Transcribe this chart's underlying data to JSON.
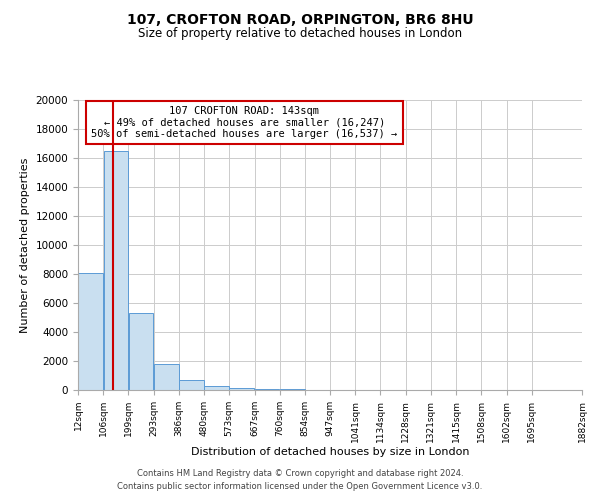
{
  "title": "107, CROFTON ROAD, ORPINGTON, BR6 8HU",
  "subtitle": "Size of property relative to detached houses in London",
  "xlabel": "Distribution of detached houses by size in London",
  "ylabel": "Number of detached properties",
  "bar_values": [
    8100,
    16500,
    5300,
    1800,
    700,
    300,
    150,
    100,
    50,
    0,
    0,
    0,
    0,
    0,
    0,
    0,
    0,
    0,
    0
  ],
  "bin_edges": [
    12,
    106,
    199,
    293,
    386,
    480,
    573,
    667,
    760,
    854,
    947,
    1041,
    1134,
    1228,
    1321,
    1415,
    1508,
    1602,
    1695,
    1882
  ],
  "tick_labels": [
    "12sqm",
    "106sqm",
    "199sqm",
    "293sqm",
    "386sqm",
    "480sqm",
    "573sqm",
    "667sqm",
    "760sqm",
    "854sqm",
    "947sqm",
    "1041sqm",
    "1134sqm",
    "1228sqm",
    "1321sqm",
    "1415sqm",
    "1508sqm",
    "1602sqm",
    "1695sqm",
    "1882sqm"
  ],
  "ylim": [
    0,
    20000
  ],
  "yticks": [
    0,
    2000,
    4000,
    6000,
    8000,
    10000,
    12000,
    14000,
    16000,
    18000,
    20000
  ],
  "bar_color": "#c9dff0",
  "bar_edgecolor": "#5b9bd5",
  "grid_color": "#cccccc",
  "vline_x": 143,
  "vline_color": "#cc0000",
  "annotation_title": "107 CROFTON ROAD: 143sqm",
  "annotation_line1": "← 49% of detached houses are smaller (16,247)",
  "annotation_line2": "50% of semi-detached houses are larger (16,537) →",
  "annotation_box_color": "#ffffff",
  "annotation_box_edgecolor": "#cc0000",
  "footer_line1": "Contains HM Land Registry data © Crown copyright and database right 2024.",
  "footer_line2": "Contains public sector information licensed under the Open Government Licence v3.0.",
  "bg_color": "#ffffff",
  "plot_bg_color": "#ffffff"
}
